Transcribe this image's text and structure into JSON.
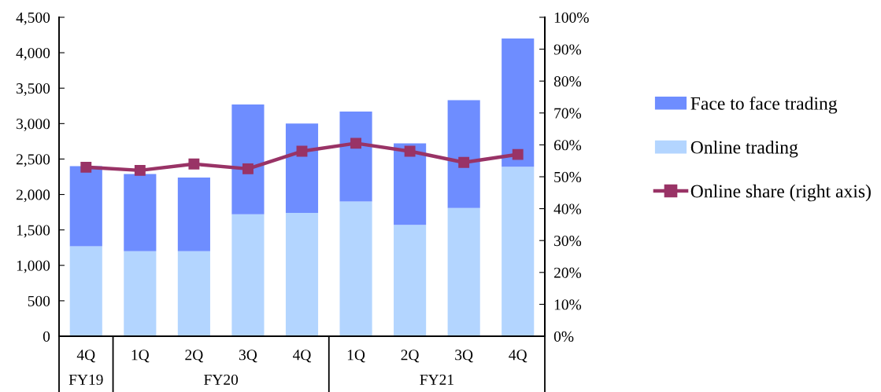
{
  "chart_data": {
    "type": "bar",
    "stacked": true,
    "categories": [
      "4Q",
      "1Q",
      "2Q",
      "3Q",
      "4Q",
      "1Q",
      "2Q",
      "3Q",
      "4Q"
    ],
    "annotations": [
      "FY19",
      "FY20",
      "FY21"
    ],
    "series": [
      {
        "name": "Online trading",
        "color": "#b3d5ff",
        "values": [
          1270,
          1200,
          1200,
          1720,
          1740,
          1900,
          1570,
          1810,
          2390
        ]
      },
      {
        "name": "Face to face trading",
        "color": "#6e8dff",
        "values": [
          1130,
          1090,
          1040,
          1550,
          1260,
          1270,
          1150,
          1520,
          1810
        ]
      },
      {
        "name": "Online share (right axis)",
        "type": "line",
        "axis": "y2",
        "color": "#993366",
        "values": [
          53,
          52,
          54,
          52.5,
          58,
          60.5,
          58,
          54.5,
          57
        ]
      }
    ],
    "ylim": [
      0,
      4500
    ],
    "yticks": [
      0,
      500,
      {
        "value": 1000,
        "label": "1,000"
      },
      {
        "value": 1500,
        "label": "1,500"
      },
      {
        "value": 2000,
        "label": "2,000"
      },
      {
        "value": 2500,
        "label": "2,500"
      },
      {
        "value": 3000,
        "label": "3,000"
      },
      {
        "value": 3500,
        "label": "3,500"
      },
      {
        "value": 4000,
        "label": "4,000"
      },
      {
        "value": 4500,
        "label": "4,500"
      }
    ],
    "y2lim": [
      0,
      100
    ],
    "y2ticks": [
      {
        "value": 0,
        "label": "0%"
      },
      {
        "value": 10,
        "label": "10%"
      },
      {
        "value": 20,
        "label": "20%"
      },
      {
        "value": 30,
        "label": "30%"
      },
      {
        "value": 40,
        "label": "40%"
      },
      {
        "value": 50,
        "label": "50%"
      },
      {
        "value": 60,
        "label": "60%"
      },
      {
        "value": 70,
        "label": "70%"
      },
      {
        "value": 80,
        "label": "80%"
      },
      {
        "value": 90,
        "label": "90%"
      },
      {
        "value": 100,
        "label": "100%"
      }
    ],
    "marker": "square",
    "legend": "right"
  }
}
